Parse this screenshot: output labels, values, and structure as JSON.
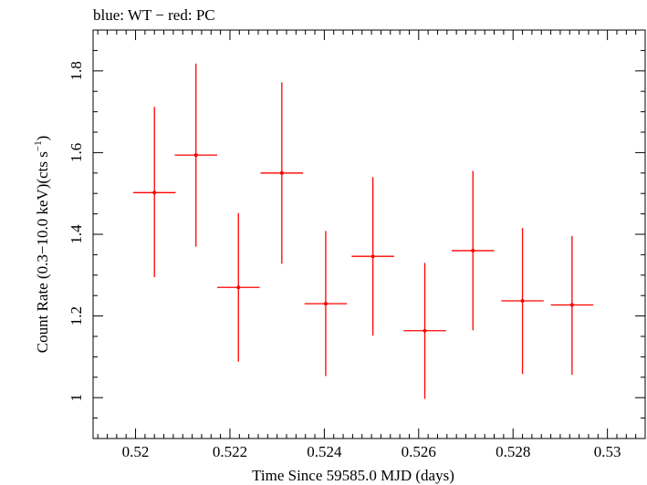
{
  "chart_data": {
    "type": "scatter",
    "title": "blue: WT − red: PC",
    "xlabel": "Time Since 59585.0 MJD (days)",
    "ylabel_main": "Count Rate (0.3−10.0 keV)(cts s",
    "ylabel_sup": "−1",
    "ylabel_end": ")",
    "xlim": [
      0.5191,
      0.5308
    ],
    "ylim": [
      0.9,
      1.9
    ],
    "x_ticks": [
      0.52,
      0.522,
      0.524,
      0.526,
      0.528,
      0.53
    ],
    "x_tick_labels": [
      "0.52",
      "0.522",
      "0.524",
      "0.526",
      "0.528",
      "0.53"
    ],
    "y_ticks": [
      1.0,
      1.2,
      1.4,
      1.6,
      1.8
    ],
    "y_tick_labels": [
      "1",
      "1.2",
      "1.4",
      "1.6",
      "1.8"
    ],
    "grid": false,
    "series": [
      {
        "color": "#ff0000",
        "points": [
          {
            "x": 0.5204,
            "xerr": 0.00045,
            "y": 1.502,
            "ylo": 1.295,
            "yhi": 1.712
          },
          {
            "x": 0.52128,
            "xerr": 0.00045,
            "y": 1.594,
            "ylo": 1.37,
            "yhi": 1.818
          },
          {
            "x": 0.52218,
            "xerr": 0.00045,
            "y": 1.27,
            "ylo": 1.088,
            "yhi": 1.452
          },
          {
            "x": 0.5231,
            "xerr": 0.00045,
            "y": 1.55,
            "ylo": 1.328,
            "yhi": 1.772
          },
          {
            "x": 0.52403,
            "xerr": 0.00045,
            "y": 1.23,
            "ylo": 1.053,
            "yhi": 1.408
          },
          {
            "x": 0.52503,
            "xerr": 0.00045,
            "y": 1.346,
            "ylo": 1.152,
            "yhi": 1.54
          },
          {
            "x": 0.52613,
            "xerr": 0.00045,
            "y": 1.164,
            "ylo": 0.997,
            "yhi": 1.33
          },
          {
            "x": 0.52715,
            "xerr": 0.00045,
            "y": 1.36,
            "ylo": 1.165,
            "yhi": 1.555
          },
          {
            "x": 0.5282,
            "xerr": 0.00045,
            "y": 1.237,
            "ylo": 1.058,
            "yhi": 1.415
          },
          {
            "x": 0.52925,
            "xerr": 0.00045,
            "y": 1.227,
            "ylo": 1.056,
            "yhi": 1.396
          }
        ]
      }
    ]
  }
}
